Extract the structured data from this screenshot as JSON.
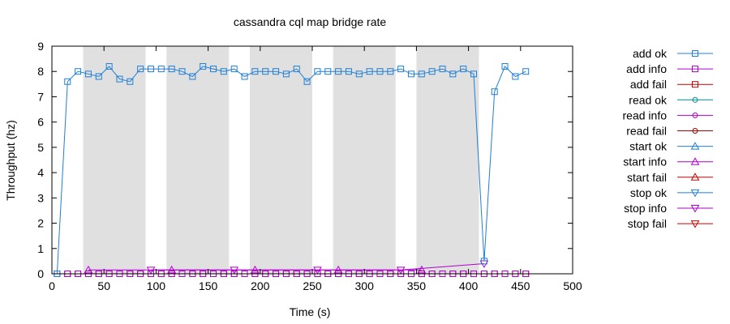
{
  "chart_data": {
    "type": "line",
    "title": "cassandra cql map bridge rate",
    "xlabel": "Time (s)",
    "ylabel": "Throughput (hz)",
    "xlim": [
      0,
      500
    ],
    "ylim": [
      0,
      9
    ],
    "x_ticks": [
      "0",
      "50",
      "100",
      "150",
      "200",
      "250",
      "300",
      "350",
      "400",
      "450",
      "500"
    ],
    "y_ticks": [
      "0",
      "1",
      "2",
      "3",
      "4",
      "5",
      "6",
      "7",
      "8",
      "9"
    ],
    "grid": false,
    "legend_position": "right",
    "shaded_intervals": [
      [
        30,
        90
      ],
      [
        110,
        170
      ],
      [
        190,
        250
      ],
      [
        270,
        330
      ],
      [
        350,
        410
      ]
    ],
    "series": [
      {
        "name": "add ok",
        "color": "#1f7fd6",
        "marker": "square",
        "points": [
          [
            5,
            0
          ],
          [
            15,
            7.6
          ],
          [
            25,
            8.0
          ],
          [
            35,
            7.9
          ],
          [
            45,
            7.8
          ],
          [
            55,
            8.2
          ],
          [
            65,
            7.7
          ],
          [
            75,
            7.6
          ],
          [
            85,
            8.1
          ],
          [
            95,
            8.1
          ],
          [
            105,
            8.1
          ],
          [
            115,
            8.1
          ],
          [
            125,
            8.0
          ],
          [
            135,
            7.8
          ],
          [
            145,
            8.2
          ],
          [
            155,
            8.1
          ],
          [
            165,
            8.0
          ],
          [
            175,
            8.1
          ],
          [
            185,
            7.8
          ],
          [
            195,
            8.0
          ],
          [
            205,
            8.0
          ],
          [
            215,
            8.0
          ],
          [
            225,
            7.9
          ],
          [
            235,
            8.1
          ],
          [
            245,
            7.6
          ],
          [
            255,
            8.0
          ],
          [
            265,
            8.0
          ],
          [
            275,
            8.0
          ],
          [
            285,
            8.0
          ],
          [
            295,
            7.9
          ],
          [
            305,
            8.0
          ],
          [
            315,
            8.0
          ],
          [
            325,
            8.0
          ],
          [
            335,
            8.1
          ],
          [
            345,
            7.9
          ],
          [
            355,
            7.9
          ],
          [
            365,
            8.0
          ],
          [
            375,
            8.1
          ],
          [
            385,
            7.9
          ],
          [
            395,
            8.1
          ],
          [
            405,
            7.9
          ],
          [
            415,
            0.5
          ],
          [
            425,
            7.2
          ],
          [
            435,
            8.2
          ],
          [
            445,
            7.8
          ],
          [
            455,
            8.0
          ]
        ]
      },
      {
        "name": "add info",
        "color": "#b000d0",
        "marker": "square",
        "points": [
          [
            5,
            0
          ],
          [
            15,
            0
          ],
          [
            25,
            0
          ],
          [
            35,
            0
          ],
          [
            45,
            0
          ],
          [
            55,
            0
          ],
          [
            65,
            0
          ],
          [
            75,
            0
          ],
          [
            85,
            0
          ],
          [
            95,
            0
          ],
          [
            105,
            0
          ],
          [
            115,
            0
          ],
          [
            125,
            0
          ],
          [
            135,
            0
          ],
          [
            145,
            0
          ],
          [
            155,
            0
          ],
          [
            165,
            0
          ],
          [
            175,
            0
          ],
          [
            185,
            0
          ],
          [
            195,
            0
          ],
          [
            205,
            0
          ],
          [
            215,
            0
          ],
          [
            225,
            0
          ],
          [
            235,
            0
          ],
          [
            245,
            0
          ],
          [
            255,
            0
          ],
          [
            265,
            0
          ],
          [
            275,
            0
          ],
          [
            285,
            0
          ],
          [
            295,
            0
          ],
          [
            305,
            0
          ],
          [
            315,
            0
          ],
          [
            325,
            0
          ],
          [
            335,
            0
          ],
          [
            345,
            0
          ],
          [
            355,
            0
          ],
          [
            365,
            0
          ],
          [
            375,
            0
          ],
          [
            385,
            0
          ],
          [
            395,
            0
          ],
          [
            405,
            0
          ],
          [
            415,
            0
          ],
          [
            425,
            0
          ],
          [
            435,
            0
          ],
          [
            445,
            0
          ],
          [
            455,
            0
          ]
        ]
      },
      {
        "name": "add fail",
        "color": "#cc0000",
        "marker": "square",
        "points": [
          [
            5,
            0
          ],
          [
            15,
            0
          ],
          [
            25,
            0
          ],
          [
            35,
            0
          ],
          [
            45,
            0
          ],
          [
            55,
            0
          ],
          [
            65,
            0
          ],
          [
            75,
            0
          ],
          [
            85,
            0
          ],
          [
            95,
            0
          ],
          [
            105,
            0
          ],
          [
            115,
            0
          ],
          [
            125,
            0
          ],
          [
            135,
            0
          ],
          [
            145,
            0
          ],
          [
            155,
            0
          ],
          [
            165,
            0
          ],
          [
            175,
            0
          ],
          [
            185,
            0
          ],
          [
            195,
            0
          ],
          [
            205,
            0
          ],
          [
            215,
            0
          ],
          [
            225,
            0
          ],
          [
            235,
            0
          ],
          [
            245,
            0
          ],
          [
            255,
            0
          ],
          [
            265,
            0
          ],
          [
            275,
            0
          ],
          [
            285,
            0
          ],
          [
            295,
            0
          ],
          [
            305,
            0
          ],
          [
            315,
            0
          ],
          [
            325,
            0
          ],
          [
            335,
            0
          ],
          [
            345,
            0
          ],
          [
            355,
            0
          ],
          [
            365,
            0
          ],
          [
            375,
            0
          ],
          [
            385,
            0
          ],
          [
            395,
            0
          ],
          [
            405,
            0
          ],
          [
            415,
            0
          ],
          [
            425,
            0
          ],
          [
            435,
            0
          ],
          [
            445,
            0
          ],
          [
            455,
            0
          ]
        ]
      },
      {
        "name": "read ok",
        "color": "#008b8b",
        "marker": "circle",
        "points": []
      },
      {
        "name": "read info",
        "color": "#b000d0",
        "marker": "circle",
        "points": []
      },
      {
        "name": "read fail",
        "color": "#aa0000",
        "marker": "circle",
        "points": []
      },
      {
        "name": "start ok",
        "color": "#1f7fd6",
        "marker": "triangle-up",
        "points": []
      },
      {
        "name": "start info",
        "color": "#b000d0",
        "marker": "triangle-up",
        "points": [
          [
            35,
            0.15
          ],
          [
            115,
            0.15
          ],
          [
            195,
            0.15
          ],
          [
            275,
            0.15
          ],
          [
            355,
            0.15
          ]
        ]
      },
      {
        "name": "start fail",
        "color": "#cc0000",
        "marker": "triangle-up",
        "points": []
      },
      {
        "name": "stop ok",
        "color": "#1f7fd6",
        "marker": "triangle-down",
        "points": []
      },
      {
        "name": "stop info",
        "color": "#b000d0",
        "marker": "triangle-down",
        "points": [
          [
            95,
            0.15
          ],
          [
            175,
            0.15
          ],
          [
            255,
            0.15
          ],
          [
            335,
            0.15
          ],
          [
            415,
            0.4
          ]
        ]
      },
      {
        "name": "stop fail",
        "color": "#cc0000",
        "marker": "triangle-down",
        "points": []
      }
    ]
  }
}
